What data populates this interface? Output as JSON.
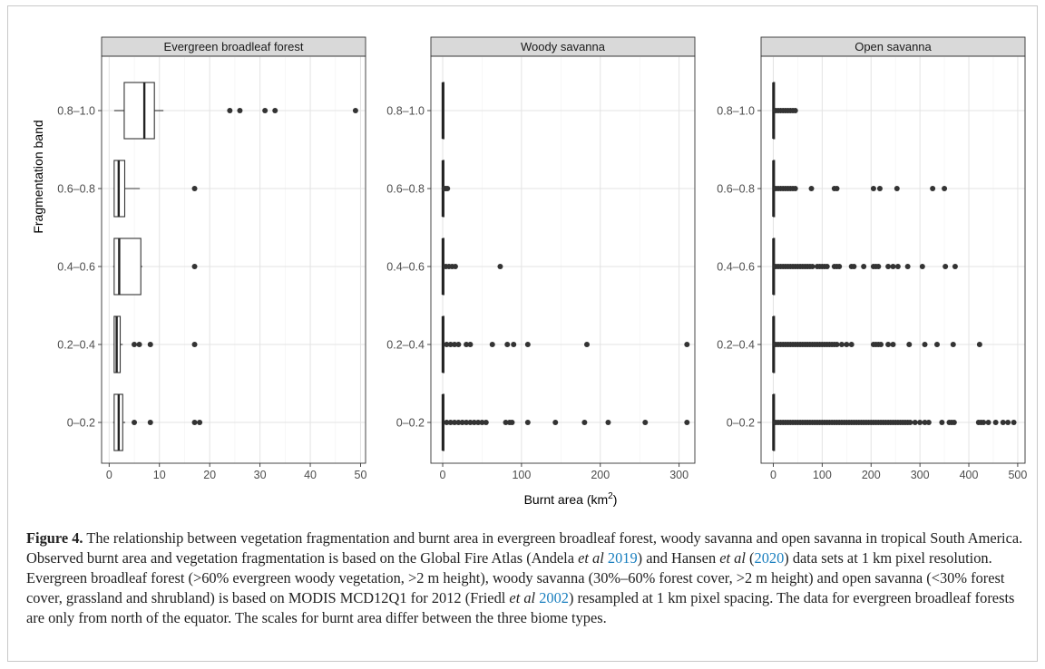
{
  "figure": {
    "caption": {
      "label": "Figure 4.",
      "p1": " The relationship between vegetation fragmentation and burnt area in evergreen broadleaf forest, woody savanna and open savanna in tropical South America. Observed burnt area and vegetation fragmentation is based on the Global Fire Atlas (Andela ",
      "etal1": "et al",
      "cite1": "2019",
      "p2": ") and Hansen ",
      "etal2": "et al",
      "p3": " (",
      "cite2": "2020",
      "p4": ") data sets at 1 km pixel resolution. Evergreen broadleaf forest (>60% evergreen woody vegetation, >2 m height), woody savanna (30%–60% forest cover, >2 m height) and open savanna (<30% forest cover, grassland and shrubland) is based on MODIS MCD12Q1 for 2012 (Friedl ",
      "etal3": "et al",
      "p5": " ",
      "cite3": "2002",
      "p6": ") resampled at 1 km pixel spacing. The data for evergreen broadleaf forests are only from north of the equator. The scales for burnt area differ between the three biome types."
    }
  },
  "chart_data": {
    "type": "box",
    "ylabel": "Fragmentation band",
    "xlabel_main": "Burnt area (km",
    "xlabel_sup": "2",
    "xlabel_end": ")",
    "categories": [
      "0–0.2",
      "0.2–0.4",
      "0.4–0.6",
      "0.6–0.8",
      "0.8–1.0"
    ],
    "panels": [
      {
        "title": "Evergreen broadleaf forest",
        "xlim": [
          -1.5,
          51
        ],
        "xticks": [
          0,
          10,
          20,
          30,
          40,
          50
        ],
        "boxes": [
          {
            "category": "0–0.2",
            "min": 0.8,
            "q1": 1.0,
            "median": 1.9,
            "q3": 2.7,
            "max": 3.2,
            "outliers": [
              5,
              8.2,
              17,
              18
            ]
          },
          {
            "category": "0.2–0.4",
            "min": 0.9,
            "q1": 1.0,
            "median": 1.5,
            "q3": 2.2,
            "max": 2.7,
            "outliers": [
              5,
              6,
              8.2,
              17
            ]
          },
          {
            "category": "0.4–0.6",
            "min": 0.8,
            "q1": 1.0,
            "median": 2.0,
            "q3": 6.3,
            "max": 6.6,
            "outliers": [
              17
            ]
          },
          {
            "category": "0.6–0.8",
            "min": 0.9,
            "q1": 1.0,
            "median": 1.9,
            "q3": 3.1,
            "max": 6.1,
            "outliers": [
              17
            ]
          },
          {
            "category": "0.8–1.0",
            "min": 1.0,
            "q1": 3.0,
            "median": 7.0,
            "q3": 9.0,
            "max": 10.8,
            "outliers": [
              24,
              26,
              31,
              33,
              49
            ]
          }
        ]
      },
      {
        "title": "Woody savanna",
        "xlim": [
          -15,
          320
        ],
        "xticks": [
          0,
          100,
          200,
          300
        ],
        "boxes": [
          {
            "category": "0–0.2",
            "min": 0,
            "q1": 0,
            "median": 0,
            "q3": 0.5,
            "max": 1,
            "outliers": [
              5,
              10,
              15,
              20,
              25,
              30,
              35,
              40,
              45,
              50,
              55,
              80,
              85,
              88,
              108,
              143,
              180,
              210,
              257,
              310
            ]
          },
          {
            "category": "0.2–0.4",
            "min": 0,
            "q1": 0,
            "median": 0,
            "q3": 0.5,
            "max": 1,
            "outliers": [
              5,
              10,
              15,
              20,
              30,
              35,
              63,
              82,
              90,
              108,
              183,
              310
            ]
          },
          {
            "category": "0.4–0.6",
            "min": 0,
            "q1": 0,
            "median": 0,
            "q3": 0.5,
            "max": 1,
            "outliers": [
              4,
              8,
              12,
              16,
              73
            ]
          },
          {
            "category": "0.6–0.8",
            "min": 0,
            "q1": 0,
            "median": 0,
            "q3": 0.5,
            "max": 1,
            "outliers": [
              2,
              4,
              6
            ]
          },
          {
            "category": "0.8–1.0",
            "min": 0,
            "q1": 0,
            "median": 0,
            "q3": 0.5,
            "max": 1,
            "outliers": []
          }
        ]
      },
      {
        "title": "Open savanna",
        "xlim": [
          -25,
          515
        ],
        "xticks": [
          0,
          100,
          200,
          300,
          400,
          500
        ],
        "boxes": [
          {
            "category": "0–0.2",
            "min": 0,
            "q1": 0,
            "median": 0,
            "q3": 1,
            "max": 2,
            "outliers": [
              5,
              10,
              15,
              20,
              25,
              30,
              35,
              40,
              45,
              50,
              55,
              60,
              65,
              70,
              75,
              80,
              85,
              90,
              95,
              100,
              105,
              110,
              115,
              120,
              125,
              130,
              135,
              140,
              145,
              150,
              155,
              160,
              165,
              170,
              175,
              180,
              185,
              190,
              195,
              200,
              205,
              210,
              215,
              220,
              225,
              230,
              235,
              240,
              245,
              250,
              255,
              260,
              265,
              270,
              275,
              280,
              290,
              300,
              310,
              318,
              345,
              360,
              365,
              370,
              420,
              425,
              430,
              440,
              455,
              470,
              480,
              492
            ]
          },
          {
            "category": "0.2–0.4",
            "min": 0,
            "q1": 0,
            "median": 0,
            "q3": 1,
            "max": 2,
            "outliers": [
              5,
              10,
              15,
              20,
              25,
              30,
              35,
              40,
              45,
              50,
              55,
              60,
              65,
              70,
              75,
              80,
              85,
              90,
              95,
              100,
              105,
              110,
              115,
              120,
              125,
              130,
              140,
              150,
              160,
              205,
              210,
              215,
              220,
              235,
              245,
              278,
              310,
              335,
              368,
              422
            ]
          },
          {
            "category": "0.4–0.6",
            "min": 0,
            "q1": 0,
            "median": 0,
            "q3": 1,
            "max": 2,
            "outliers": [
              5,
              10,
              15,
              20,
              25,
              30,
              35,
              40,
              45,
              50,
              55,
              60,
              65,
              70,
              75,
              80,
              90,
              95,
              100,
              105,
              110,
              125,
              130,
              135,
              160,
              165,
              185,
              205,
              210,
              215,
              235,
              245,
              255,
              275,
              305,
              352,
              372
            ]
          },
          {
            "category": "0.6–0.8",
            "min": 0,
            "q1": 0,
            "median": 0,
            "q3": 1,
            "max": 2,
            "outliers": [
              5,
              10,
              15,
              20,
              25,
              30,
              35,
              40,
              45,
              78,
              125,
              130,
              205,
              218,
              253,
              326,
              350
            ]
          },
          {
            "category": "0.8–1.0",
            "min": 0,
            "q1": 0,
            "median": 0,
            "q3": 1,
            "max": 2,
            "outliers": [
              5,
              10,
              15,
              20,
              25,
              30,
              35,
              40,
              45
            ]
          }
        ]
      }
    ]
  }
}
